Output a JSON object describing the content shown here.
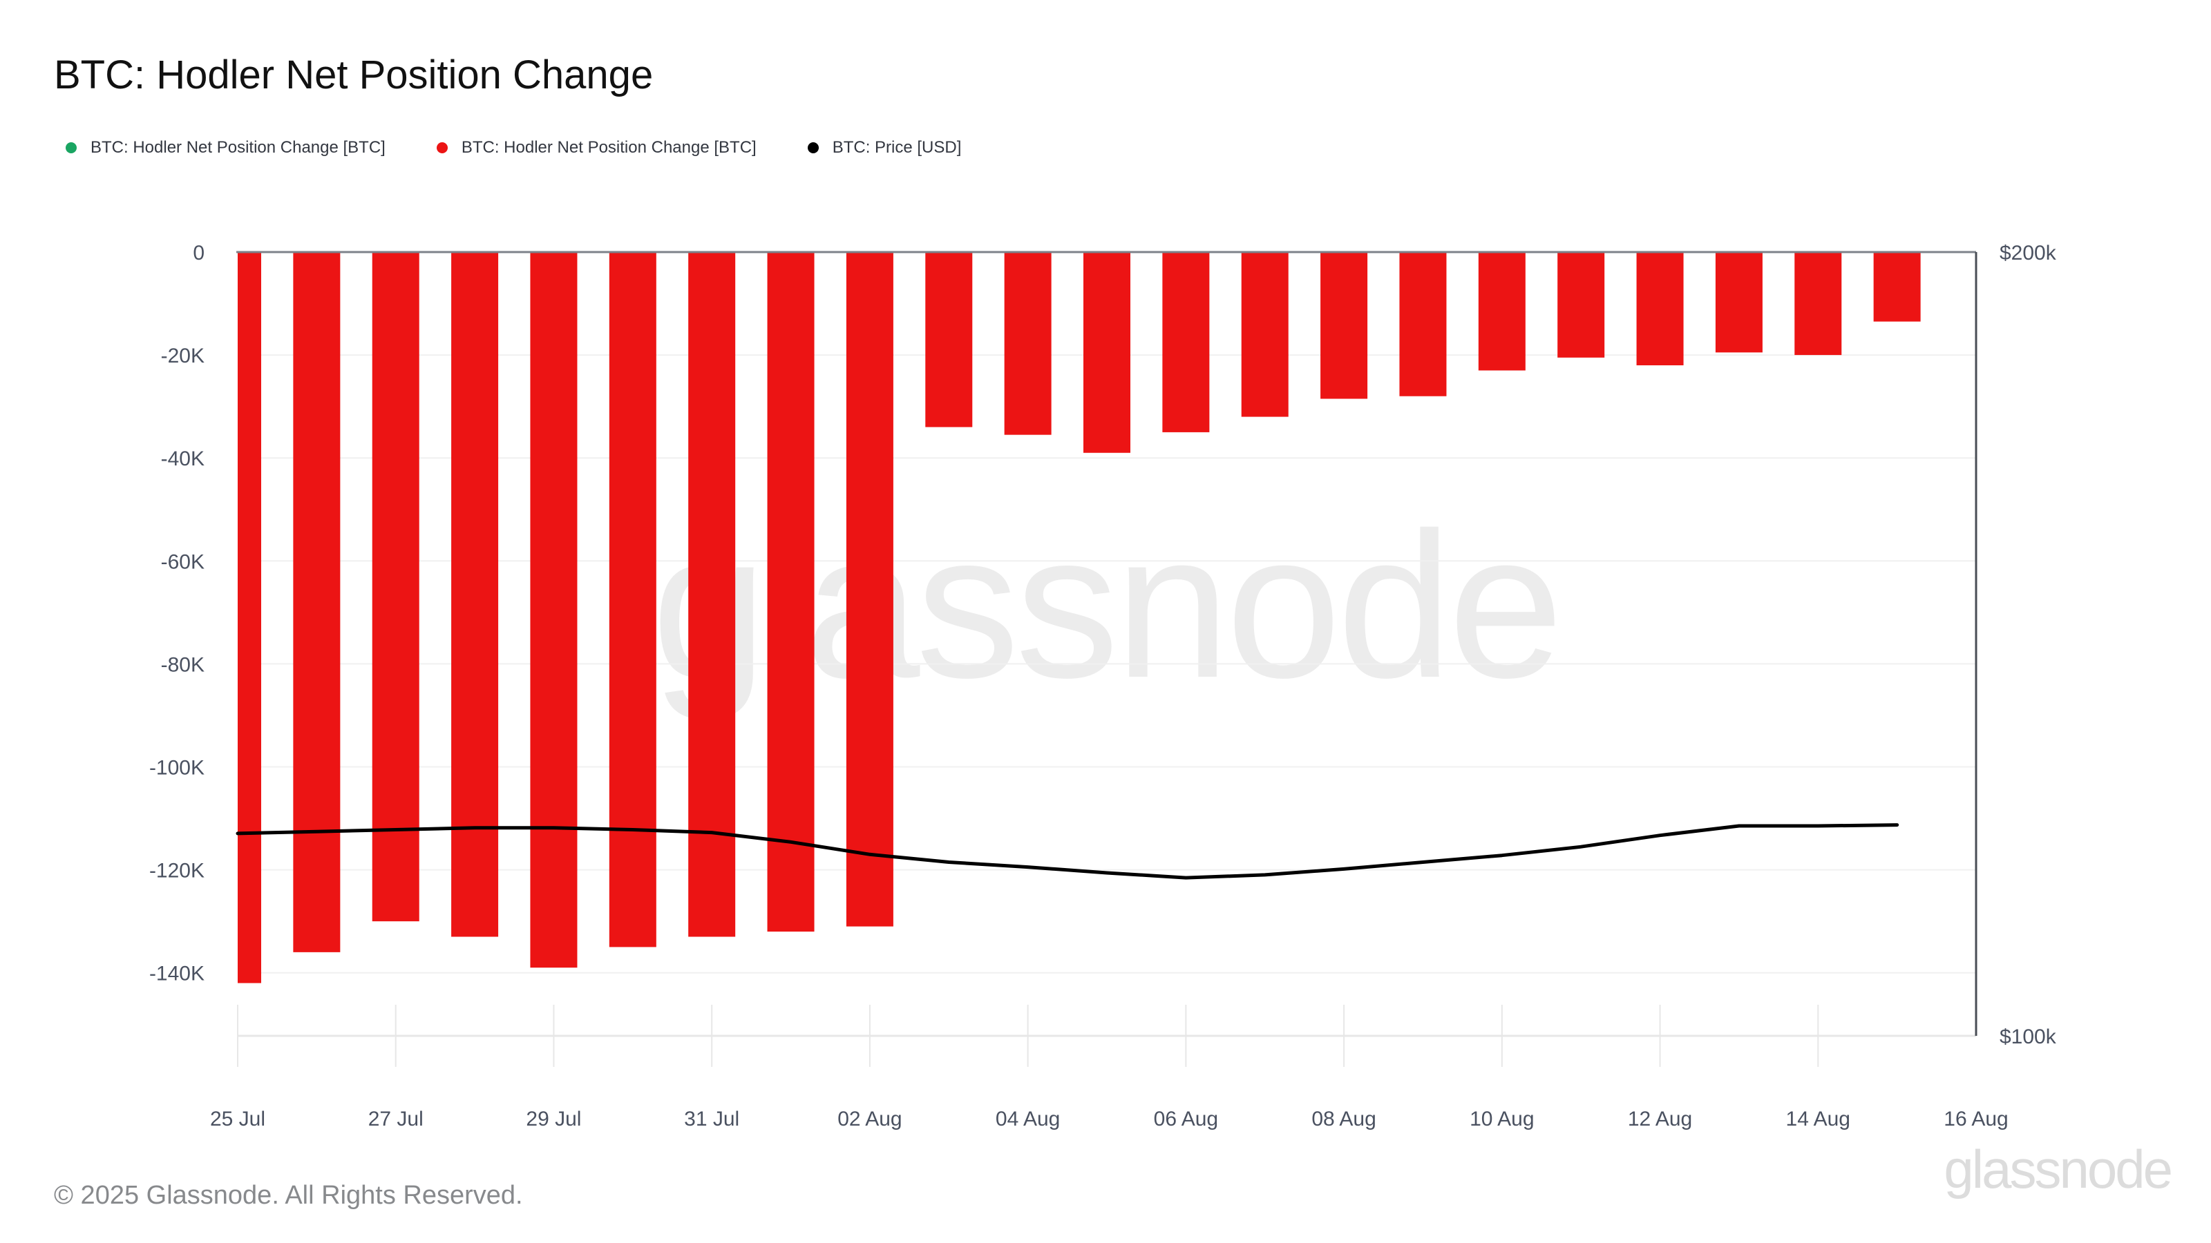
{
  "header": {
    "title": "BTC: Hodler Net Position Change"
  },
  "legend": {
    "items": [
      {
        "label": "BTC: Hodler Net Position Change [BTC]",
        "color": "#1aa562",
        "marker": "circle"
      },
      {
        "label": "BTC: Hodler Net Position Change [BTC]",
        "color": "#ec1414",
        "marker": "circle"
      },
      {
        "label": "BTC: Price [USD]",
        "color": "#000000",
        "marker": "circle"
      }
    ]
  },
  "chart_data": {
    "type": "bar",
    "title": "BTC: Hodler Net Position Change",
    "x": [
      "25 Jul",
      "26 Jul",
      "27 Jul",
      "28 Jul",
      "29 Jul",
      "30 Jul",
      "31 Jul",
      "01 Aug",
      "02 Aug",
      "03 Aug",
      "04 Aug",
      "05 Aug",
      "06 Aug",
      "07 Aug",
      "08 Aug",
      "09 Aug",
      "10 Aug",
      "11 Aug",
      "12 Aug",
      "13 Aug",
      "14 Aug",
      "15 Aug"
    ],
    "series": [
      {
        "name": "BTC: Hodler Net Position Change [BTC]",
        "type": "bar",
        "color": "#ec1414",
        "axis": "left",
        "values": [
          -142000,
          -136000,
          -130000,
          -133000,
          -139000,
          -135000,
          -133000,
          -132000,
          -131000,
          -34000,
          -35500,
          -39000,
          -35000,
          -32000,
          -28500,
          -28000,
          -23000,
          -20500,
          -22000,
          -19500,
          -20000,
          -13500
        ]
      },
      {
        "name": "BTC: Price [USD]",
        "type": "line",
        "color": "#000000",
        "axis": "right",
        "values": [
          119600,
          119800,
          120000,
          120200,
          120200,
          120000,
          119700,
          118700,
          117400,
          116600,
          116100,
          115500,
          115000,
          115300,
          115900,
          116600,
          117300,
          118200,
          119400,
          120400,
          120400,
          120500
        ]
      }
    ],
    "left_axis": {
      "tick_labels": [
        "0",
        "-20K",
        "-40K",
        "-60K",
        "-80K",
        "-100K",
        "-120K",
        "-140K"
      ],
      "tick_values": [
        0,
        -20000,
        -40000,
        -60000,
        -80000,
        -100000,
        -120000,
        -140000
      ],
      "unit": "BTC"
    },
    "right_axis": {
      "tick_labels": [
        "$200k",
        "$100k"
      ],
      "tick_values": [
        200000,
        100000
      ],
      "scale": "log",
      "unit": "USD"
    },
    "x_axis": {
      "tick_labels": [
        "25 Jul",
        "27 Jul",
        "29 Jul",
        "31 Jul",
        "02 Aug",
        "04 Aug",
        "06 Aug",
        "08 Aug",
        "10 Aug",
        "12 Aug",
        "14 Aug",
        "16 Aug"
      ]
    },
    "grid": true,
    "legend_position": "top-left",
    "colors": {
      "bar": "#ec1414",
      "price_line": "#000000",
      "gridline": "#f0f0f0",
      "zero_line": "#7d828a",
      "right_border": "#494e55",
      "axis_line": "#e7e7e7",
      "axis_label": "#4a5160"
    }
  },
  "watermark": {
    "text": "glassnode"
  },
  "footer": {
    "copyright": "© 2025 Glassnode. All Rights Reserved.",
    "logo": "glassnode"
  }
}
